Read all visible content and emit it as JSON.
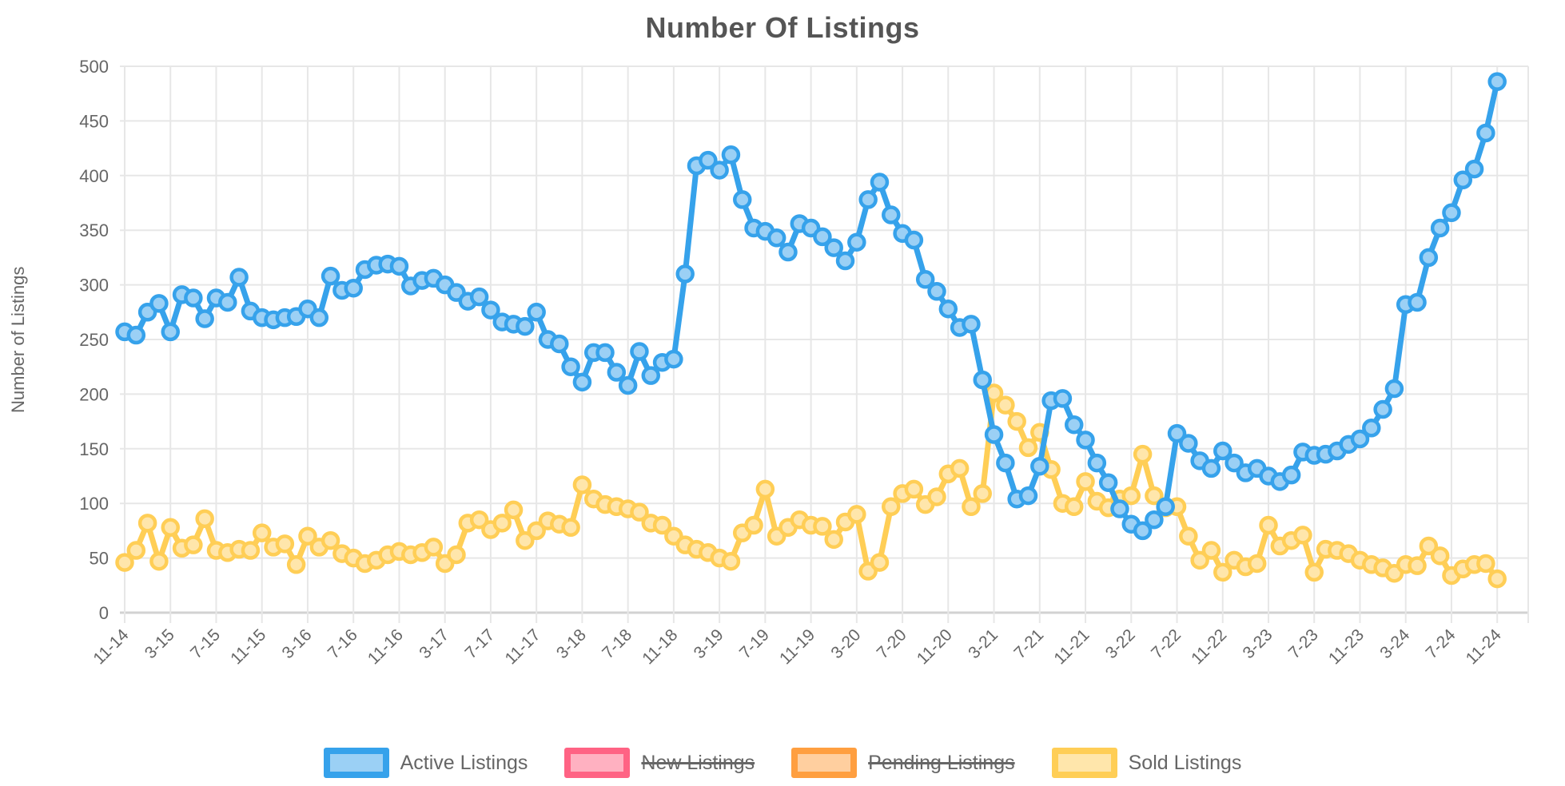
{
  "page": {
    "title": "Number Of Listings"
  },
  "y_axis": {
    "title": "Number of Listings",
    "min": 0,
    "max": 500,
    "step": 50,
    "ticks": [
      0,
      50,
      100,
      150,
      200,
      250,
      300,
      350,
      400,
      450,
      500
    ]
  },
  "x_axis": {
    "months_per_tick": 4,
    "tick_labels": [
      "11-14",
      "3-15",
      "7-15",
      "11-15",
      "3-16",
      "7-16",
      "11-16",
      "3-17",
      "7-17",
      "11-17",
      "3-18",
      "7-18",
      "11-18",
      "3-19",
      "7-19",
      "11-19",
      "3-20",
      "7-20",
      "11-20",
      "3-21",
      "7-21",
      "11-21",
      "3-22",
      "7-22",
      "11-22",
      "3-23",
      "7-23",
      "11-23",
      "3-24",
      "7-24",
      "11-24"
    ]
  },
  "colors": {
    "grid": "#e7e7e7",
    "axis_baseline": "#d2d2d2",
    "tick_text": "#666666",
    "title_text": "#555555",
    "active_line": "#36A2EB",
    "active_fill": "#9BD0F5",
    "new_line": "#FF6384",
    "new_fill": "#FFB1C1",
    "pending_line": "#FF9F40",
    "pending_fill": "#FFCF9F",
    "sold_line": "#FFCE56",
    "sold_fill": "#FFE6AB"
  },
  "legend": {
    "items": [
      {
        "label": "Active Listings",
        "border_color": "#36A2EB",
        "fill_color": "#9BD0F5",
        "hidden": false
      },
      {
        "label": "New Listings",
        "border_color": "#FF6384",
        "fill_color": "#FFB1C1",
        "hidden": true
      },
      {
        "label": "Pending Listings",
        "border_color": "#FF9F40",
        "fill_color": "#FFCF9F",
        "hidden": true
      },
      {
        "label": "Sold Listings",
        "border_color": "#FFCE56",
        "fill_color": "#FFE6AB",
        "hidden": false
      }
    ]
  },
  "chart_data": {
    "type": "line",
    "title": "Number Of Listings",
    "xlabel": "",
    "ylabel": "Number of Listings",
    "ylim": [
      0,
      500
    ],
    "grid": true,
    "legend_position": "bottom",
    "n_points": 121,
    "x_tick_labels": [
      "11-14",
      "3-15",
      "7-15",
      "11-15",
      "3-16",
      "7-16",
      "11-16",
      "3-17",
      "7-17",
      "11-17",
      "3-18",
      "7-18",
      "11-18",
      "3-19",
      "7-19",
      "11-19",
      "3-20",
      "7-20",
      "11-20",
      "3-21",
      "7-21",
      "11-21",
      "3-22",
      "7-22",
      "11-22",
      "3-23",
      "7-23",
      "11-23",
      "3-24",
      "7-24",
      "11-24"
    ],
    "series": [
      {
        "name": "Active Listings",
        "color": "#36A2EB",
        "point_fill": "#9BD0F5",
        "hidden": false,
        "values": [
          257,
          254,
          275,
          283,
          257,
          291,
          288,
          269,
          288,
          284,
          307,
          276,
          270,
          268,
          270,
          271,
          278,
          270,
          308,
          295,
          297,
          314,
          318,
          319,
          317,
          299,
          304,
          306,
          300,
          293,
          285,
          289,
          277,
          266,
          264,
          262,
          275,
          250,
          246,
          225,
          211,
          238,
          238,
          220,
          208,
          239,
          217,
          229,
          232,
          310,
          409,
          414,
          405,
          419,
          378,
          352,
          349,
          343,
          330,
          356,
          352,
          344,
          334,
          322,
          339,
          378,
          394,
          364,
          347,
          341,
          305,
          294,
          278,
          261,
          264,
          213,
          163,
          137,
          104,
          107,
          134,
          194,
          196,
          172,
          158,
          137,
          119,
          95,
          81,
          75,
          85,
          97,
          164,
          155,
          139,
          132,
          148,
          137,
          128,
          132,
          125,
          120,
          126,
          147,
          144,
          145,
          148,
          154,
          159,
          169,
          186,
          205,
          282,
          284,
          325,
          352,
          366,
          396,
          406,
          439,
          486
        ]
      },
      {
        "name": "New Listings",
        "color": "#FF6384",
        "point_fill": "#FFB1C1",
        "hidden": true,
        "values": []
      },
      {
        "name": "Pending Listings",
        "color": "#FF9F40",
        "point_fill": "#FFCF9F",
        "hidden": true,
        "values": []
      },
      {
        "name": "Sold Listings",
        "color": "#FFCE56",
        "point_fill": "#FFE6AB",
        "hidden": false,
        "values": [
          46,
          57,
          82,
          47,
          78,
          59,
          62,
          86,
          57,
          55,
          58,
          57,
          73,
          60,
          63,
          44,
          70,
          60,
          66,
          54,
          50,
          45,
          48,
          53,
          56,
          53,
          55,
          60,
          45,
          53,
          82,
          85,
          76,
          82,
          94,
          66,
          75,
          84,
          81,
          78,
          117,
          104,
          99,
          97,
          95,
          92,
          82,
          80,
          70,
          62,
          58,
          55,
          50,
          47,
          73,
          80,
          113,
          70,
          78,
          85,
          80,
          79,
          67,
          83,
          90,
          38,
          46,
          97,
          109,
          113,
          99,
          106,
          127,
          132,
          97,
          109,
          201,
          190,
          175,
          151,
          165,
          131,
          100,
          97,
          120,
          102,
          96,
          104,
          107,
          145,
          107,
          96,
          97,
          70,
          48,
          57,
          37,
          48,
          42,
          45,
          80,
          61,
          66,
          71,
          37,
          58,
          57,
          54,
          48,
          44,
          41,
          36,
          44,
          43,
          61,
          52,
          34,
          40,
          44,
          45,
          31
        ]
      }
    ]
  }
}
